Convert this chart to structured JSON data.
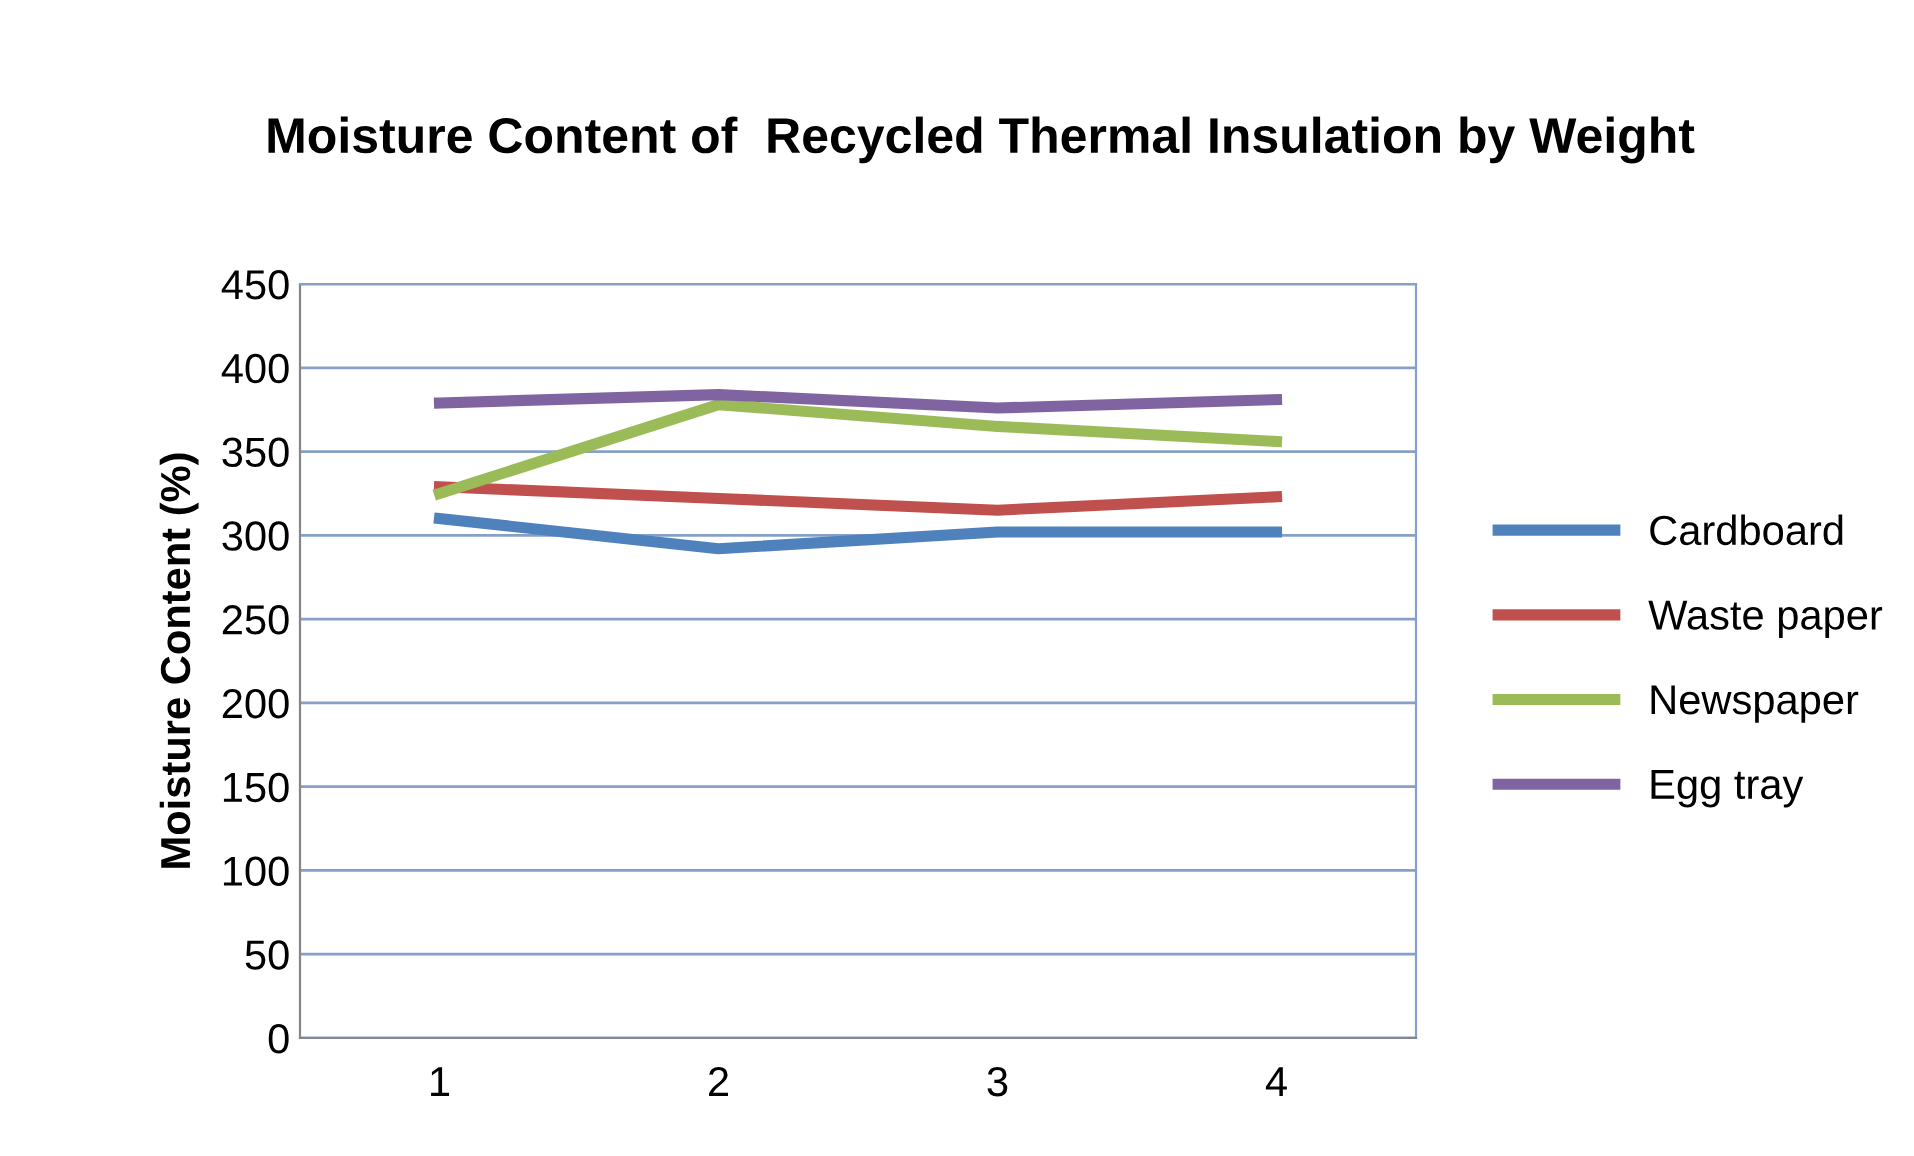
{
  "chart_data": {
    "type": "line",
    "title": "Moisture Content of  Recycled Thermal Insulation by Weight",
    "ylabel": "Moisture Content (%)",
    "categories": [
      "1",
      "2",
      "3",
      "4"
    ],
    "series": [
      {
        "name": "Cardboard",
        "color": "#4f81bd",
        "values": [
          310,
          292,
          302,
          302
        ]
      },
      {
        "name": "Waste paper",
        "color": "#c0504d",
        "values": [
          329,
          322,
          315,
          323
        ]
      },
      {
        "name": "Newspaper",
        "color": "#9bbb59",
        "values": [
          325,
          378,
          365,
          356
        ]
      },
      {
        "name": "Egg tray",
        "color": "#8064a2",
        "values": [
          379,
          384,
          376,
          381
        ]
      }
    ],
    "ylim": [
      0,
      450
    ],
    "yticks": [
      0,
      50,
      100,
      150,
      200,
      250,
      300,
      350,
      400,
      450
    ],
    "grid": "y",
    "legend": "right",
    "marker": "none",
    "line_style": "solid"
  }
}
